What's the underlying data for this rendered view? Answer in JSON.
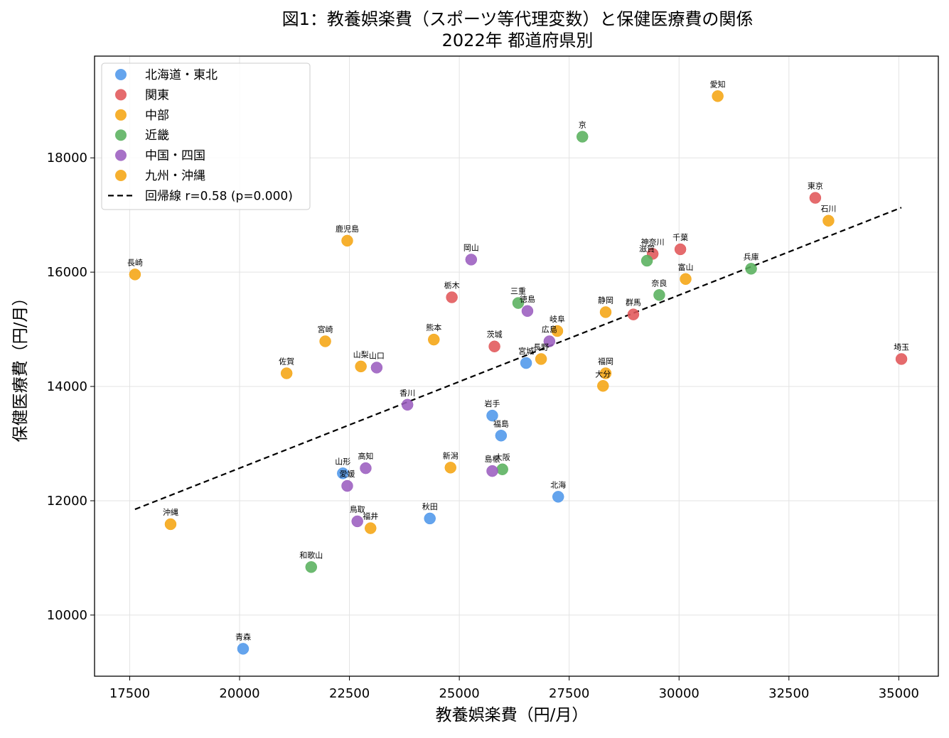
{
  "chart_data": {
    "type": "scatter",
    "title": "図1：教養娯楽費（スポーツ等代理変数）と保健医療費の関係",
    "subtitle": "2022年 都道府県別",
    "xlabel": "教養娯楽費（円/月）",
    "ylabel": "保健医療費（円/月）",
    "xlim": [
      16700,
      35900
    ],
    "ylim": [
      8930,
      19780
    ],
    "xticks": [
      17500,
      20000,
      22500,
      25000,
      27500,
      30000,
      32500,
      35000
    ],
    "yticks": [
      10000,
      12000,
      14000,
      16000,
      18000
    ],
    "grid": true,
    "legend_position": "upper left",
    "series": [
      {
        "name": "北海道・東北",
        "color": "#4f97ea",
        "points": [
          {
            "label": "北海",
            "x": 27250,
            "y": 12070
          },
          {
            "label": "青森",
            "x": 20080,
            "y": 9410
          },
          {
            "label": "岩手",
            "x": 25750,
            "y": 13490
          },
          {
            "label": "宮城",
            "x": 26520,
            "y": 14410
          },
          {
            "label": "秋田",
            "x": 24330,
            "y": 11690
          },
          {
            "label": "山形",
            "x": 22350,
            "y": 12480
          },
          {
            "label": "福島",
            "x": 25950,
            "y": 13140
          }
        ]
      },
      {
        "name": "関東",
        "color": "#e15759",
        "points": [
          {
            "label": "茨城",
            "x": 25800,
            "y": 14700
          },
          {
            "label": "栃木",
            "x": 24830,
            "y": 15560
          },
          {
            "label": "群馬",
            "x": 28960,
            "y": 15260
          },
          {
            "label": "埼玉",
            "x": 35060,
            "y": 14480
          },
          {
            "label": "千葉",
            "x": 30030,
            "y": 16400
          },
          {
            "label": "東京",
            "x": 33100,
            "y": 17300
          },
          {
            "label": "神奈川",
            "x": 29400,
            "y": 16320
          }
        ]
      },
      {
        "name": "中部",
        "color": "#f5a512",
        "points": [
          {
            "label": "新潟",
            "x": 24800,
            "y": 12580
          },
          {
            "label": "富山",
            "x": 30150,
            "y": 15880
          },
          {
            "label": "石川",
            "x": 33400,
            "y": 16900
          },
          {
            "label": "福井",
            "x": 22980,
            "y": 11520
          },
          {
            "label": "山梨",
            "x": 22760,
            "y": 14350
          },
          {
            "label": "長野",
            "x": 26860,
            "y": 14480
          },
          {
            "label": "岐阜",
            "x": 27230,
            "y": 14970
          },
          {
            "label": "静岡",
            "x": 28330,
            "y": 15300
          },
          {
            "label": "愛知",
            "x": 30880,
            "y": 19080
          }
        ]
      },
      {
        "name": "近畿",
        "color": "#59b15d",
        "points": [
          {
            "label": "三重",
            "x": 26340,
            "y": 15460
          },
          {
            "label": "滋賀",
            "x": 29270,
            "y": 16200
          },
          {
            "label": "京",
            "x": 27800,
            "y": 18370
          },
          {
            "label": "大阪",
            "x": 25980,
            "y": 12550
          },
          {
            "label": "兵庫",
            "x": 31640,
            "y": 16060
          },
          {
            "label": "奈良",
            "x": 29550,
            "y": 15600
          },
          {
            "label": "和歌山",
            "x": 21630,
            "y": 10840
          }
        ]
      },
      {
        "name": "中国・四国",
        "color": "#9b5dbf",
        "points": [
          {
            "label": "鳥取",
            "x": 22680,
            "y": 11640
          },
          {
            "label": "島根",
            "x": 25750,
            "y": 12520
          },
          {
            "label": "岡山",
            "x": 25270,
            "y": 16220
          },
          {
            "label": "広島",
            "x": 27050,
            "y": 14790
          },
          {
            "label": "山口",
            "x": 23120,
            "y": 14330
          },
          {
            "label": "徳島",
            "x": 26550,
            "y": 15320
          },
          {
            "label": "香川",
            "x": 23820,
            "y": 13680
          },
          {
            "label": "愛媛",
            "x": 22450,
            "y": 12260
          },
          {
            "label": "高知",
            "x": 22870,
            "y": 12570
          }
        ]
      },
      {
        "name": "九州・沖縄",
        "color": "#f5a512",
        "points": [
          {
            "label": "福岡",
            "x": 28330,
            "y": 14230
          },
          {
            "label": "佐賀",
            "x": 21070,
            "y": 14230
          },
          {
            "label": "長崎",
            "x": 17620,
            "y": 15960
          },
          {
            "label": "熊本",
            "x": 24420,
            "y": 14820
          },
          {
            "label": "大分",
            "x": 28270,
            "y": 14010
          },
          {
            "label": "宮崎",
            "x": 21950,
            "y": 14790
          },
          {
            "label": "鹿児島",
            "x": 22450,
            "y": 16550
          },
          {
            "label": "沖縄",
            "x": 18430,
            "y": 11590
          }
        ]
      }
    ],
    "regression": {
      "label": "回帰線 r=0.58 (p=0.000)",
      "x": [
        17620,
        35060
      ],
      "y": [
        11850,
        17130
      ],
      "color": "#000000",
      "style": "dashed"
    }
  }
}
